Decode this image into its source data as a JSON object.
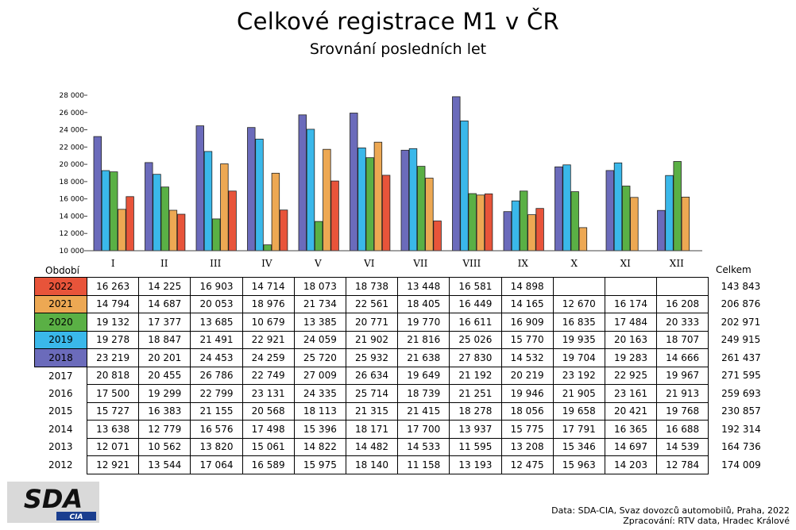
{
  "colors": {
    "2022": "#e8543a",
    "2021": "#eda853",
    "2020": "#5ab045",
    "2019": "#3ab8ea",
    "2018": "#6b6bbb"
  },
  "chart_data": {
    "type": "bar",
    "title": "Celkové registrace M1 v ČR",
    "subtitle": "Srovnání posledních let",
    "categories": [
      "I",
      "II",
      "III",
      "IV",
      "V",
      "VI",
      "VII",
      "VIII",
      "IX",
      "X",
      "XI",
      "XII"
    ],
    "ylim": [
      10000,
      28000
    ],
    "yticks": [
      "10 000",
      "12 000",
      "14 000",
      "16 000",
      "18 000",
      "20 000",
      "22 000",
      "24 000",
      "26 000",
      "28 000"
    ],
    "series": [
      {
        "name": "2018",
        "values": [
          23219,
          20201,
          24453,
          24259,
          25720,
          25932,
          21638,
          27830,
          14532,
          19704,
          19283,
          14666
        ]
      },
      {
        "name": "2019",
        "values": [
          19278,
          18847,
          21491,
          22921,
          24059,
          21902,
          21816,
          25026,
          15770,
          19935,
          20163,
          18707
        ]
      },
      {
        "name": "2020",
        "values": [
          19132,
          17377,
          13685,
          10679,
          13385,
          20771,
          19770,
          16611,
          16909,
          16835,
          17484,
          20333
        ]
      },
      {
        "name": "2021",
        "values": [
          14794,
          14687,
          20053,
          18976,
          21734,
          22561,
          18405,
          16449,
          14165,
          12670,
          16174,
          16208
        ]
      },
      {
        "name": "2022",
        "values": [
          16263,
          14225,
          16903,
          14714,
          18073,
          18738,
          13448,
          16581,
          14898,
          null,
          null,
          null
        ]
      }
    ]
  },
  "table": {
    "header_period": "Období",
    "header_total": "Celkem",
    "rows": [
      {
        "year": "2022",
        "values": [
          "16 263",
          "14 225",
          "16 903",
          "14 714",
          "18 073",
          "18 738",
          "13 448",
          "16 581",
          "14 898",
          "",
          "",
          ""
        ],
        "total": "143 843"
      },
      {
        "year": "2021",
        "values": [
          "14 794",
          "14 687",
          "20 053",
          "18 976",
          "21 734",
          "22 561",
          "18 405",
          "16 449",
          "14 165",
          "12 670",
          "16 174",
          "16 208"
        ],
        "total": "206 876"
      },
      {
        "year": "2020",
        "values": [
          "19 132",
          "17 377",
          "13 685",
          "10 679",
          "13 385",
          "20 771",
          "19 770",
          "16 611",
          "16 909",
          "16 835",
          "17 484",
          "20 333"
        ],
        "total": "202 971"
      },
      {
        "year": "2019",
        "values": [
          "19 278",
          "18 847",
          "21 491",
          "22 921",
          "24 059",
          "21 902",
          "21 816",
          "25 026",
          "15 770",
          "19 935",
          "20 163",
          "18 707"
        ],
        "total": "249 915"
      },
      {
        "year": "2018",
        "values": [
          "23 219",
          "20 201",
          "24 453",
          "24 259",
          "25 720",
          "25 932",
          "21 638",
          "27 830",
          "14 532",
          "19 704",
          "19 283",
          "14 666"
        ],
        "total": "261 437"
      },
      {
        "year": "2017",
        "values": [
          "20 818",
          "20 455",
          "26 786",
          "22 749",
          "27 009",
          "26 634",
          "19 649",
          "21 192",
          "20 219",
          "23 192",
          "22 925",
          "19 967"
        ],
        "total": "271 595"
      },
      {
        "year": "2016",
        "values": [
          "17 500",
          "19 299",
          "22 799",
          "23 131",
          "24 335",
          "25 714",
          "18 739",
          "21 251",
          "19 946",
          "21 905",
          "23 161",
          "21 913"
        ],
        "total": "259 693"
      },
      {
        "year": "2015",
        "values": [
          "15 727",
          "16 383",
          "21 155",
          "20 568",
          "18 113",
          "21 315",
          "21 415",
          "18 278",
          "18 056",
          "19 658",
          "20 421",
          "19 768"
        ],
        "total": "230 857"
      },
      {
        "year": "2014",
        "values": [
          "13 638",
          "12 779",
          "16 576",
          "17 498",
          "15 396",
          "18 171",
          "17 700",
          "13 937",
          "15 775",
          "17 791",
          "16 365",
          "16 688"
        ],
        "total": "192 314"
      },
      {
        "year": "2013",
        "values": [
          "12 071",
          "10 562",
          "13 820",
          "15 061",
          "14 822",
          "14 482",
          "14 533",
          "11 595",
          "13 208",
          "15 346",
          "14 697",
          "14 539"
        ],
        "total": "164 736"
      },
      {
        "year": "2012",
        "values": [
          "12 921",
          "13 544",
          "17 064",
          "16 589",
          "15 975",
          "18 140",
          "11 158",
          "13 193",
          "12 475",
          "15 963",
          "14 203",
          "12 784"
        ],
        "total": "174 009"
      }
    ]
  },
  "logo": {
    "main": "SDA",
    "sub": "CIA"
  },
  "source": {
    "line1": "Data: SDA-CIA, Svaz dovozců automobilů, Praha, 2022",
    "line2": "Zpracování: RTV data, Hradec Králové"
  }
}
